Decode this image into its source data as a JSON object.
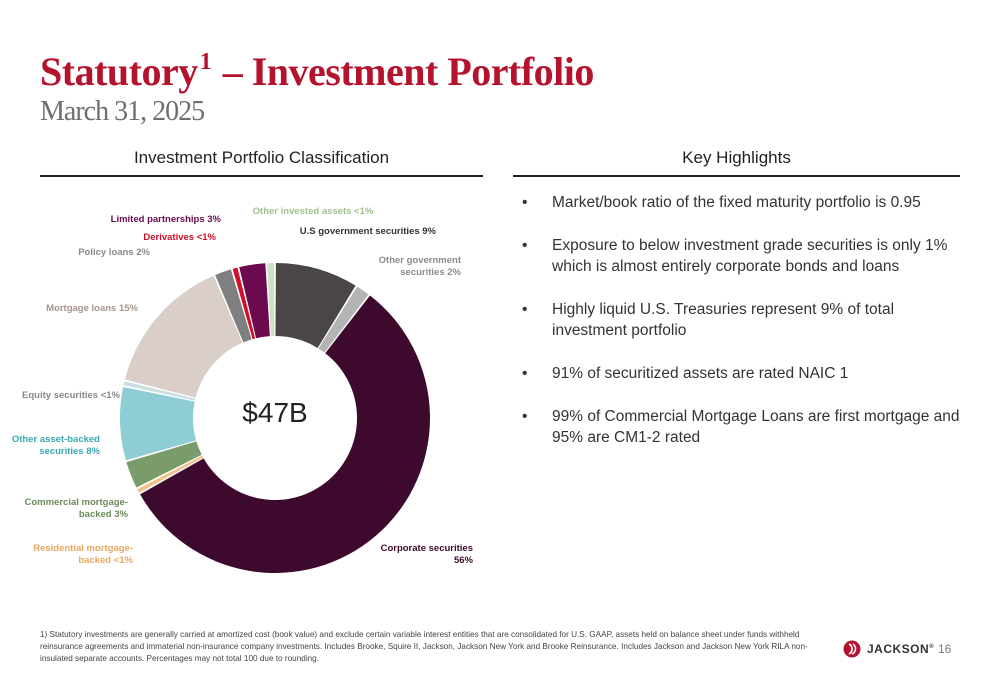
{
  "header": {
    "title_main": "Statutory",
    "title_sup": "1",
    "title_rest": "– Investment Portfolio",
    "subtitle": "March 31, 2025"
  },
  "left_section": {
    "heading": "Investment Portfolio Classification"
  },
  "right_section": {
    "heading": "Key Highlights",
    "bullet_symbol": "•",
    "items": [
      "Market/book ratio of the fixed maturity portfolio is 0.95",
      "Exposure to below investment grade securities is only 1% which is almost entirely corporate bonds and loans",
      "Highly liquid U.S. Treasuries represent 9% of total investment portfolio",
      "91% of securitized assets are rated NAIC 1",
      "99% of Commercial Mortgage Loans are first mortgage and 95% are CM1-2 rated"
    ]
  },
  "chart_data": {
    "type": "pie",
    "style": "donut",
    "center_label": "$47B",
    "slices": [
      {
        "name": "U.S government securities",
        "label_lines": [
          "U.S government securities 9%"
        ],
        "value": 8.8,
        "color": "#4a4647",
        "label_color": "#333333"
      },
      {
        "name": "Other government securities",
        "label_lines": [
          "Other government",
          "securities 2%"
        ],
        "value": 1.6,
        "color": "#b4b4b4",
        "label_color": "#8c8c8c"
      },
      {
        "name": "Corporate securities",
        "label_lines": [
          "Corporate securities",
          "56%"
        ],
        "value": 56.5,
        "color": "#3d0a2e",
        "label_color": "#3d0a2e"
      },
      {
        "name": "Residential mortgage-backed",
        "label_lines": [
          "Residential mortgage-",
          "backed <1%"
        ],
        "value": 0.6,
        "color": "#f2c18c",
        "label_color": "#e8a860"
      },
      {
        "name": "Commercial mortgage-backed",
        "label_lines": [
          "Commercial mortgage-",
          "backed 3%"
        ],
        "value": 3.0,
        "color": "#7a9c6a",
        "label_color": "#6b8c5a"
      },
      {
        "name": "Other asset-backed securities",
        "label_lines": [
          "Other asset-backed",
          "securities 8%"
        ],
        "value": 7.8,
        "color": "#8ecdd4",
        "label_color": "#3aa9b5"
      },
      {
        "name": "Equity securities",
        "label_lines": [
          "Equity securities <1%"
        ],
        "value": 0.6,
        "color": "#c9dfe3",
        "label_color": "#888888"
      },
      {
        "name": "Mortgage loans",
        "label_lines": [
          "Mortgage loans 15%"
        ],
        "value": 14.7,
        "color": "#d9cfc8",
        "label_color": "#a8968a"
      },
      {
        "name": "Policy loans",
        "label_lines": [
          "Policy loans 2%"
        ],
        "value": 1.9,
        "color": "#7f7f7f",
        "label_color": "#888888"
      },
      {
        "name": "Derivatives",
        "label_lines": [
          "Derivatives <1%"
        ],
        "value": 0.7,
        "color": "#d0102a",
        "label_color": "#d0102a"
      },
      {
        "name": "Limited partnerships",
        "label_lines": [
          "Limited partnerships 3%"
        ],
        "value": 2.9,
        "color": "#6b0a4e",
        "label_color": "#6b0a4e"
      },
      {
        "name": "Other invested assets",
        "label_lines": [
          "Other invested assets <1%"
        ],
        "value": 0.9,
        "color": "#cfe0c8",
        "label_color": "#9fbf8f"
      }
    ]
  },
  "footnote": "1) Statutory investments are generally carried at amortized cost (book value) and exclude certain variable interest entities that are consolidated for U.S. GAAP, assets held on balance sheet under funds withheld reinsurance agreements and immaterial non-insurance company investments.  Includes Brooke, Squire II, Jackson, Jackson New York and Brooke Reinsurance.  Includes Jackson and Jackson New York RILA non-insulated separate accounts.  Percentages may not total 100 due to rounding.",
  "brand": {
    "name": "JACKSON",
    "tm": "®",
    "color": "#b5122e"
  },
  "page_number": "16"
}
